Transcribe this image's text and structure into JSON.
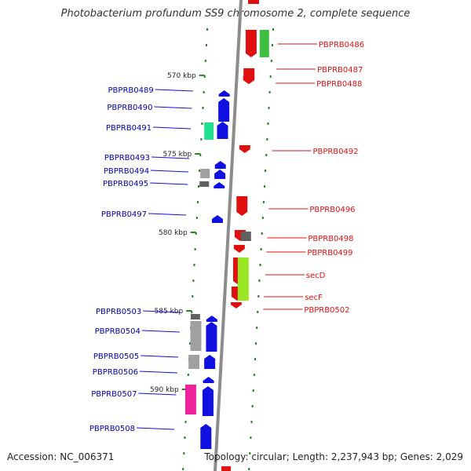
{
  "header": {
    "title": "Photobacterium profundum SS9 chromosome 2, complete sequence"
  },
  "footer": {
    "accession": "Accession: NC_006371",
    "summary": "Topology: circular; Length: 2,237,943 bp; Genes: 2,029"
  },
  "colors": {
    "forward": "#1010e0",
    "reverse": "#e01010",
    "left_label": "#0000aa",
    "right_label": "#cc0000",
    "backbone": "#888888",
    "scale_tick": "#1a8a1a"
  },
  "scale_labels": [
    "570 kbp",
    "575 kbp",
    "580 kbp",
    "585 kbp",
    "590 kbp"
  ],
  "left_genes": [
    {
      "label": "PBPRB0489",
      "color": "#1010e0"
    },
    {
      "label": "PBPRB0490",
      "color": "#1010e0"
    },
    {
      "label": "PBPRB0491",
      "color": "#1010e0"
    },
    {
      "label": "PBPRB0493",
      "color": "#1010e0"
    },
    {
      "label": "PBPRB0494",
      "color": "#1010e0"
    },
    {
      "label": "PBPRB0495",
      "color": "#1010e0"
    },
    {
      "label": "PBPRB0497",
      "color": "#1010e0"
    },
    {
      "label": "PBPRB0503",
      "color": "#1010e0"
    },
    {
      "label": "PBPRB0504",
      "color": "#1010e0"
    },
    {
      "label": "PBPRB0505",
      "color": "#1010e0"
    },
    {
      "label": "PBPRB0506",
      "color": "#1010e0"
    },
    {
      "label": "PBPRB0507",
      "color": "#1010e0"
    },
    {
      "label": "PBPRB0508",
      "color": "#1010e0"
    }
  ],
  "right_genes": [
    {
      "label": "PBPRB0486",
      "color": "#e01010"
    },
    {
      "label": "PBPRB0487",
      "color": "#e01010"
    },
    {
      "label": "PBPRB0488",
      "color": "#e01010"
    },
    {
      "label": "PBPRB0492",
      "color": "#e01010"
    },
    {
      "label": "PBPRB0496",
      "color": "#e01010"
    },
    {
      "label": "PBPRB0498",
      "color": "#e01010"
    },
    {
      "label": "PBPRB0499",
      "color": "#e01010"
    },
    {
      "label": "secD",
      "color": "#e01010"
    },
    {
      "label": "secF",
      "color": "#e01010"
    },
    {
      "label": "PBPRB0502",
      "color": "#e01010"
    }
  ],
  "feature_colors": [
    "#40c040",
    "#20e090",
    "#a0a0a0",
    "#606060",
    "#99e622",
    "#ee2299"
  ]
}
